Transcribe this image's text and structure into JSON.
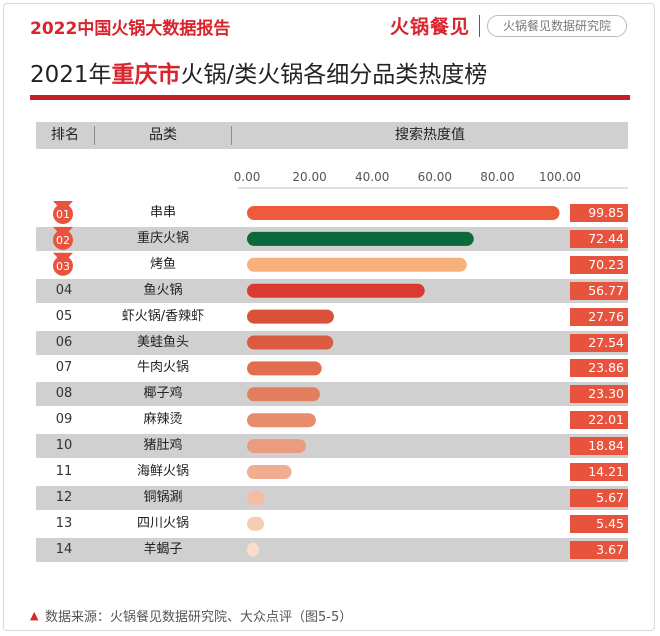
{
  "header": {
    "report_title": "2022中国火锅大数据报告",
    "brand": "火锅餐见",
    "institute": "火锅餐见数据研究院"
  },
  "title": {
    "prefix": "2021年",
    "highlight": "重庆市",
    "suffix": "火锅/类火锅各细分品类热度榜"
  },
  "table_header": {
    "rank": "排名",
    "category": "品类",
    "heat": "搜索热度值"
  },
  "colors": {
    "accent": "#d9232d",
    "value_box": "#e8533d",
    "row_band": "#d0d0d0",
    "medal": "#e8533d"
  },
  "chart_data": {
    "type": "bar",
    "orientation": "horizontal",
    "xlim": [
      0,
      100
    ],
    "x_ticks": [
      "0.00",
      "20.00",
      "40.00",
      "60.00",
      "80.00",
      "100.00"
    ],
    "rows": [
      {
        "rank": "01",
        "category": "串串",
        "value": 99.85,
        "label": "99.85",
        "color": "#ef5a3a"
      },
      {
        "rank": "02",
        "category": "重庆火锅",
        "value": 72.44,
        "label": "72.44",
        "color": "#0b6a3b"
      },
      {
        "rank": "03",
        "category": "烤鱼",
        "value": 70.23,
        "label": "70.23",
        "color": "#f8b07c"
      },
      {
        "rank": "04",
        "category": "鱼火锅",
        "value": 56.77,
        "label": "56.77",
        "color": "#d93a31"
      },
      {
        "rank": "05",
        "category": "虾火锅/香辣虾",
        "value": 27.76,
        "label": "27.76",
        "color": "#d85237"
      },
      {
        "rank": "06",
        "category": "美蛙鱼头",
        "value": 27.54,
        "label": "27.54",
        "color": "#db5b40"
      },
      {
        "rank": "07",
        "category": "牛肉火锅",
        "value": 23.86,
        "label": "23.86",
        "color": "#e06e4f"
      },
      {
        "rank": "08",
        "category": "椰子鸡",
        "value": 23.3,
        "label": "23.30",
        "color": "#e47e5f"
      },
      {
        "rank": "09",
        "category": "麻辣烫",
        "value": 22.01,
        "label": "22.01",
        "color": "#e88c6d"
      },
      {
        "rank": "10",
        "category": "猪肚鸡",
        "value": 18.84,
        "label": "18.84",
        "color": "#ec9c7e"
      },
      {
        "rank": "11",
        "category": "海鲜火锅",
        "value": 14.21,
        "label": "14.21",
        "color": "#f0ad90"
      },
      {
        "rank": "12",
        "category": "铜锅涮",
        "value": 5.67,
        "label": "5.67",
        "color": "#f4bda3"
      },
      {
        "rank": "13",
        "category": "四川火锅",
        "value": 5.45,
        "label": "5.45",
        "color": "#f7ccb5"
      },
      {
        "rank": "14",
        "category": "羊蝎子",
        "value": 3.67,
        "label": "3.67",
        "color": "#fadcc9"
      }
    ]
  },
  "footer": {
    "source": "数据来源：火锅餐见数据研究院、大众点评（图5-5）"
  }
}
